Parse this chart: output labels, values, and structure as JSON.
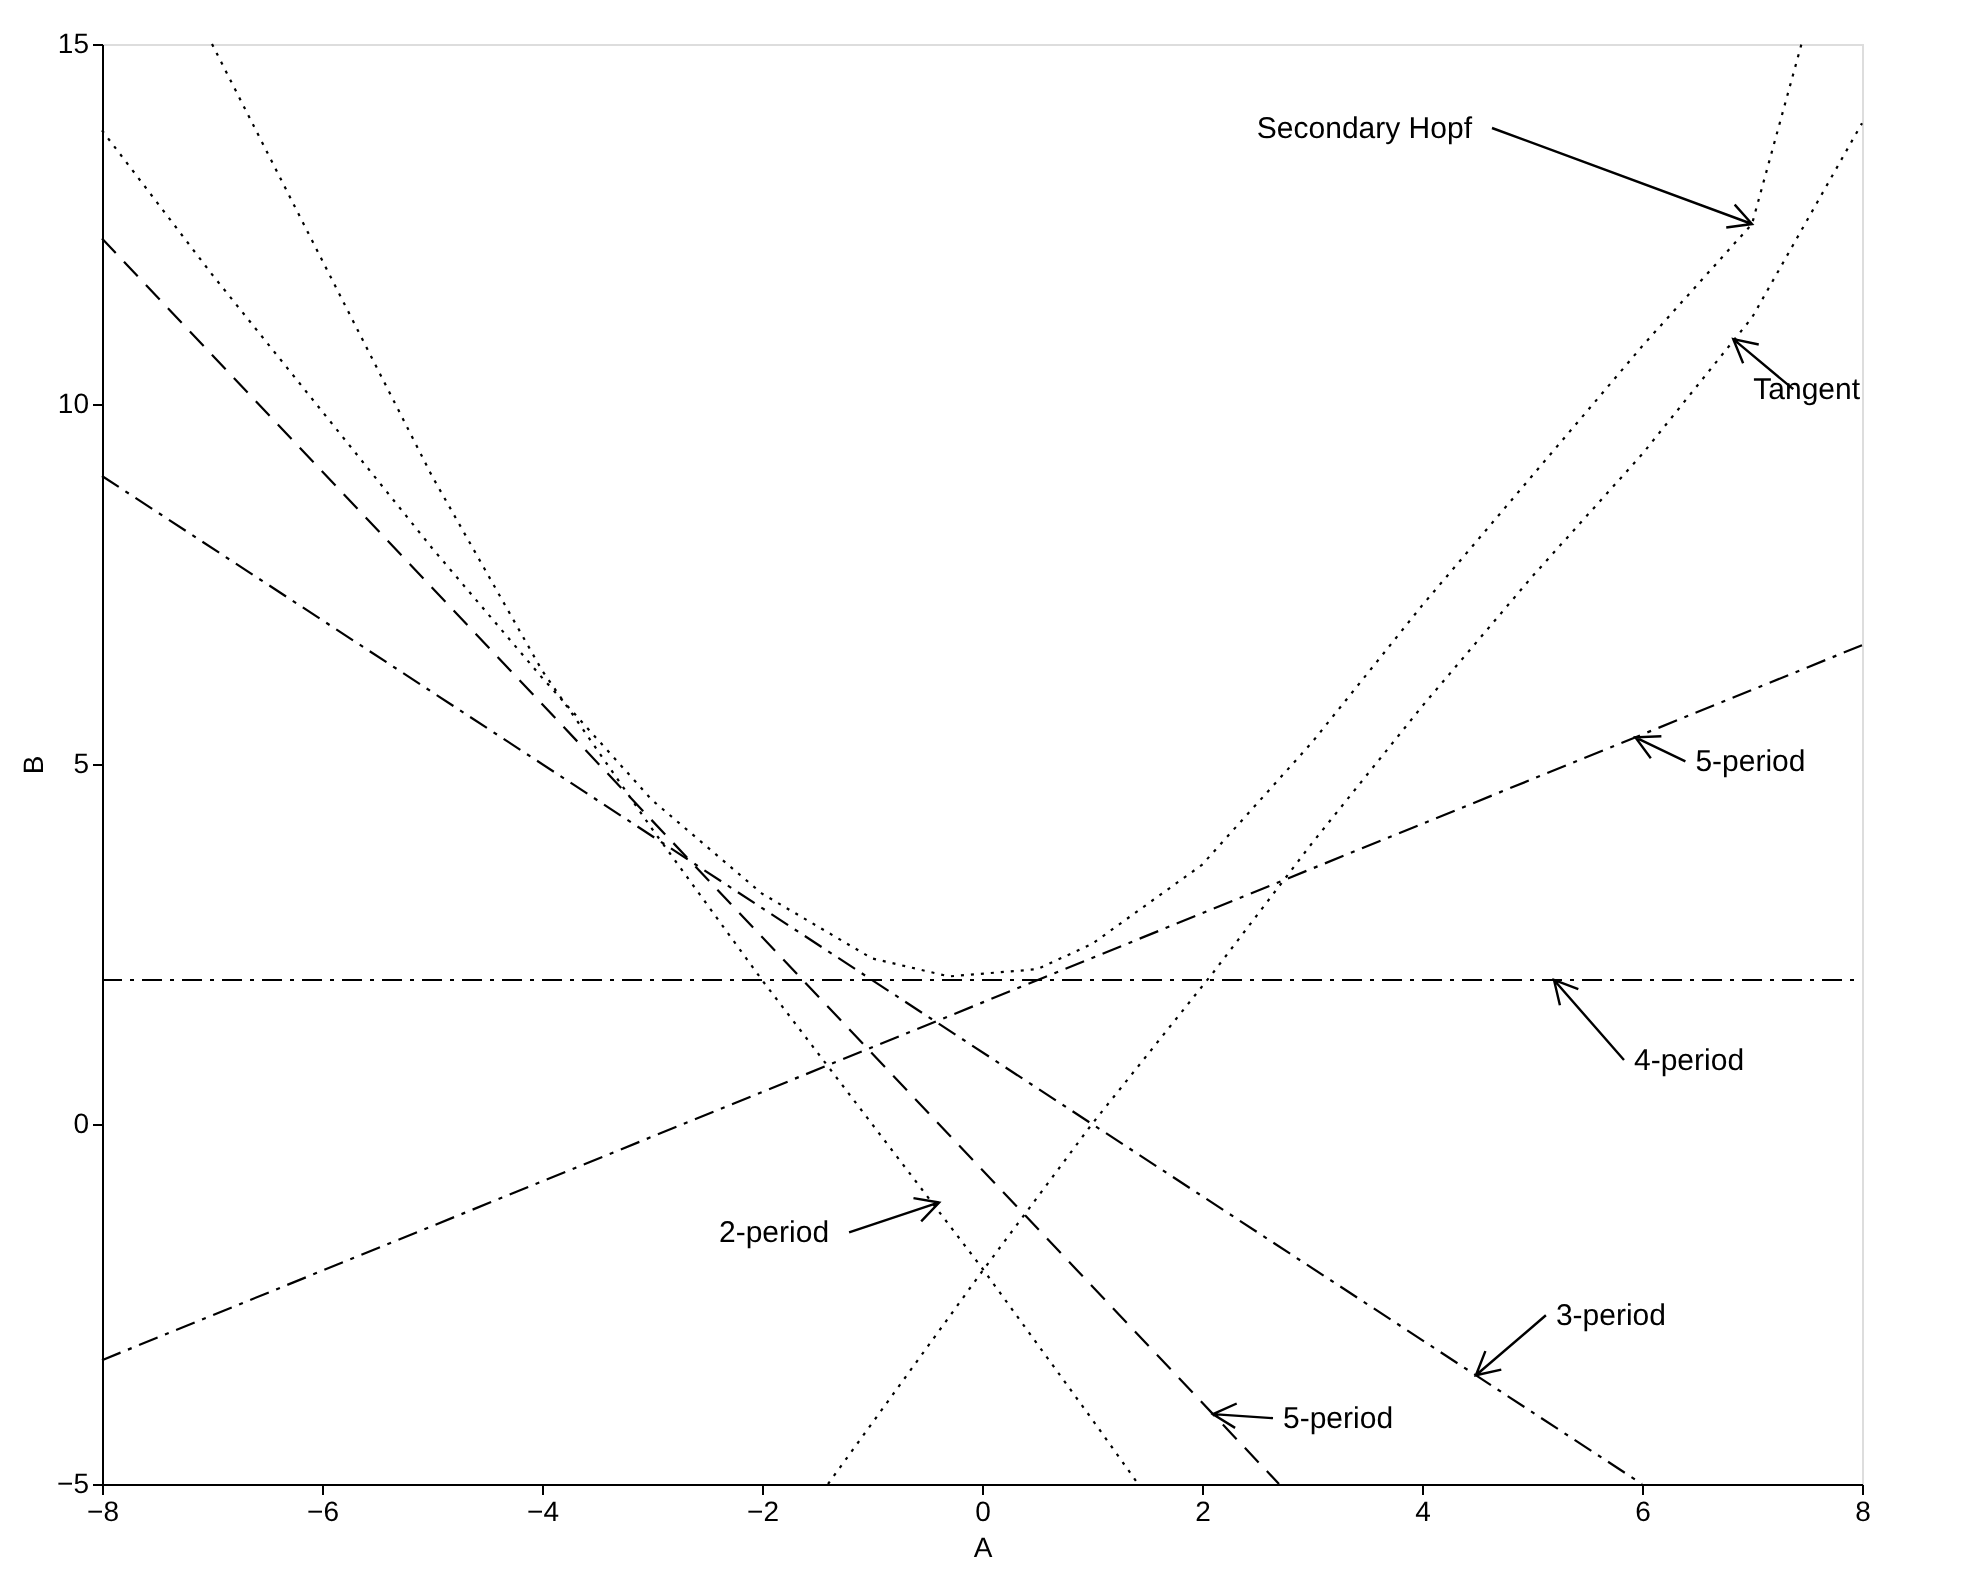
{
  "chart_data": {
    "type": "line",
    "xlabel": "A",
    "ylabel": "B",
    "xlim": [
      -8,
      8
    ],
    "xticks": [
      -8,
      -6,
      -4,
      -2,
      0,
      2,
      4,
      6,
      8
    ],
    "ylim": [
      -5,
      15
    ],
    "yticks": [
      -5,
      0,
      5,
      10,
      15
    ],
    "grid": false,
    "marker": "none",
    "series": [
      {
        "color": "#000000",
        "line_style": "dotted",
        "x": [
          -8,
          -7,
          -6,
          -5,
          -4,
          -3,
          -2,
          -1,
          -0.3,
          0.5,
          1,
          2,
          3,
          4,
          5,
          6,
          7,
          7.45
        ],
        "values": [
          13.8,
          11.8,
          9.9,
          8.0,
          6.2,
          4.5,
          3.2,
          2.3,
          2.05,
          2.15,
          2.5,
          3.6,
          5.3,
          7.2,
          9.0,
          10.8,
          12.5,
          15
        ]
      },
      {
        "color": "#000000",
        "line_style": "dotted",
        "x": [
          -1.4,
          0,
          1,
          2.1,
          3,
          4,
          5,
          6,
          7,
          8
        ],
        "values": [
          -5,
          -2.05,
          0,
          2.1,
          3.9,
          5.8,
          7.6,
          9.3,
          11.2,
          13.9
        ]
      },
      {
        "color": "#000000",
        "line_style": "dotted",
        "x": [
          -7,
          -6,
          -5,
          -4,
          -3,
          -2,
          -1,
          0,
          1,
          1.42
        ],
        "values": [
          15,
          12,
          9,
          6.3,
          4.1,
          2.0,
          0,
          -2,
          -4.1,
          -5
        ]
      },
      {
        "color": "#000000",
        "line_style": "dashed",
        "x": [
          -8,
          2.7
        ],
        "values": [
          12.3,
          -5
        ]
      },
      {
        "color": "#000000",
        "line_style": "dashdot",
        "x": [
          -8,
          6
        ],
        "values": [
          9,
          -5
        ]
      },
      {
        "color": "#000000",
        "line_style": "dashdot",
        "x": [
          -8,
          8
        ],
        "values": [
          2,
          2
        ]
      },
      {
        "color": "#000000",
        "line_style": "dashdot",
        "x": [
          -8,
          8
        ],
        "values": [
          -3.28,
          6.65
        ]
      }
    ],
    "annotations": [
      {
        "text": "Secondary Hopf",
        "x": 7.0,
        "y": 12.5
      },
      {
        "text": "Tangent",
        "x": 6.83,
        "y": 10.9
      },
      {
        "text": "5-period",
        "x": 5.94,
        "y": 5.37
      },
      {
        "text": "4-period",
        "x": 5.2,
        "y": 2
      },
      {
        "text": "2-period",
        "x": -0.39,
        "y": -1.09
      },
      {
        "text": "5-period",
        "x": 2.1,
        "y": -4.03
      },
      {
        "text": "3-period",
        "x": 4.49,
        "y": -3.49
      }
    ]
  }
}
